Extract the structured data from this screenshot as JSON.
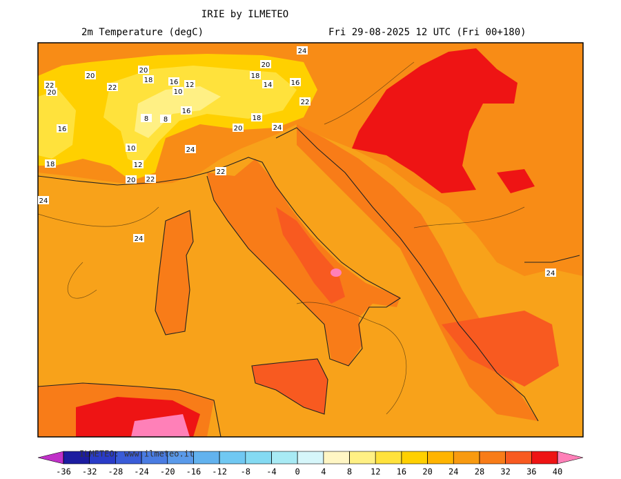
{
  "title": "IRIE by ILMETEO",
  "subtitle": "2m Temperature (degC)",
  "valid_time": "Fri 29-08-2025 12 UTC (Fri 00+180)",
  "watermark": "ILMETEO: www.ilmeteo.it",
  "contour_labels": [
    24,
    20,
    20,
    18,
    20,
    22,
    22,
    20,
    18,
    14,
    16,
    16,
    12,
    10,
    22,
    16,
    8,
    8,
    16,
    18,
    20,
    24,
    10,
    24,
    12,
    18,
    22,
    20,
    22,
    24,
    24,
    24
  ],
  "colorbar": {
    "ticks": [
      -36,
      -32,
      -28,
      -24,
      -20,
      -16,
      -12,
      -8,
      -4,
      0,
      4,
      8,
      12,
      16,
      20,
      24,
      28,
      32,
      36,
      40
    ],
    "under_color": "#c030c8",
    "over_color": "#ff80b8",
    "colors": [
      "#1c1ca0",
      "#2a3cc8",
      "#3a5cd8",
      "#4a7ce2",
      "#5a9aea",
      "#62b2ee",
      "#70c8f2",
      "#84daf2",
      "#a8eaf4",
      "#d6f6fa",
      "#fff6c4",
      "#fff084",
      "#ffe23c",
      "#ffd000",
      "#ffb400",
      "#f89a10",
      "#f87c18",
      "#f85a20",
      "#ee1414"
    ]
  }
}
